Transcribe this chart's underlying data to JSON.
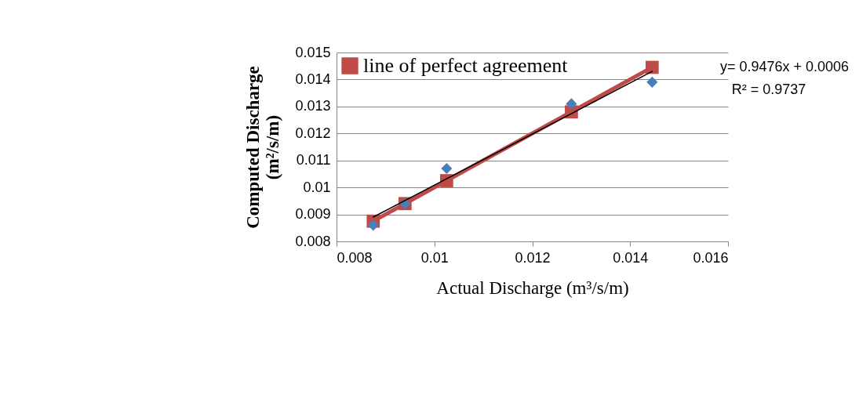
{
  "chart_data": {
    "type": "scatter",
    "xlabel": "Actual Discharge (m³/s/m)",
    "ylabel": "Computed Discharge (m²/s/m)",
    "x": [
      0.00875,
      0.0094,
      0.01025,
      0.0128,
      0.01445
    ],
    "series": [
      {
        "color": "#4a7ebb",
        "marker": "diamond",
        "values": [
          0.0086,
          0.0094,
          0.0107,
          0.0131,
          0.0139
        ]
      },
      {
        "type": "line",
        "name": "line of perfect agreement",
        "color": "#be4b48",
        "marker": "square",
        "values": [
          0.00875,
          0.0094,
          0.01025,
          0.0128,
          0.01445
        ]
      },
      {
        "type": "line",
        "color": "#000000",
        "marker": "none",
        "x": [
          0.00875,
          0.01445
        ],
        "values": [
          0.0089,
          0.0143
        ]
      }
    ],
    "annotations": [
      "y= 0.9476x  + 0.0006",
      "R² = 0.9737"
    ],
    "xlim": [
      0.008,
      0.016
    ],
    "xticks": [
      0.008,
      0.01,
      0.012,
      0.014,
      0.016
    ],
    "ylim": [
      0.008,
      0.015
    ],
    "yticks": [
      0.008,
      0.009,
      0.01,
      0.011,
      0.012,
      0.013,
      0.014,
      0.015
    ],
    "grid": "y",
    "legend": "top left"
  }
}
